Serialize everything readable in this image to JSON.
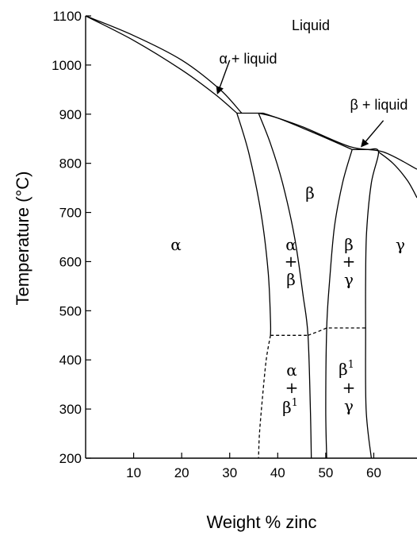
{
  "chart_data": {
    "type": "phase-diagram",
    "xlabel": "Weight % zinc",
    "ylabel": "Temperature (°C)",
    "xlim": [
      0,
      69
    ],
    "ylim": [
      200,
      1100
    ],
    "x_ticks": [
      "10",
      "20",
      "30",
      "40",
      "50",
      "60"
    ],
    "y_ticks": [
      "200",
      "300",
      "400",
      "500",
      "600",
      "700",
      "800",
      "900",
      "1000",
      "1100"
    ],
    "x_tick_values": [
      10,
      20,
      30,
      40,
      50,
      60
    ],
    "y_tick_values": [
      200,
      300,
      400,
      500,
      600,
      700,
      800,
      900,
      1000,
      1100
    ],
    "regions": {
      "liquid": "Liquid",
      "alpha": "α",
      "beta": "β",
      "gamma": "γ",
      "alpha_plus_liquid": "α + liquid",
      "beta_plus_liquid": "β + liquid",
      "ab_alpha": "α",
      "ab_plus": "+",
      "ab_beta": "β",
      "bg_beta": "β",
      "bg_plus": "+",
      "bg_gamma": "γ",
      "ab1_alpha": "α",
      "ab1_plus": "+",
      "ab1_beta": "β",
      "ab1_sup": "1",
      "b1g_beta": "β",
      "b1g_sup": "1",
      "b1g_plus": "+",
      "b1g_gamma": "γ"
    },
    "boundaries": {
      "liquidus_alpha": [
        [
          0,
          1100
        ],
        [
          10,
          1060
        ],
        [
          20,
          1010
        ],
        [
          28,
          950
        ],
        [
          32.5,
          902
        ]
      ],
      "solidus_alpha": [
        [
          0,
          1100
        ],
        [
          10,
          1050
        ],
        [
          20,
          990
        ],
        [
          27,
          940
        ],
        [
          31.5,
          902
        ]
      ],
      "peritectic_alpha_beta": [
        [
          31.5,
          902
        ],
        [
          37,
          902
        ]
      ],
      "alpha_beta_left": [
        [
          31.5,
          902
        ],
        [
          34,
          820
        ],
        [
          36.5,
          700
        ],
        [
          38,
          580
        ],
        [
          38.5,
          480
        ],
        [
          38.5,
          450
        ]
      ],
      "alpha_beta_right": [
        [
          36,
          902
        ],
        [
          38.5,
          840
        ],
        [
          41,
          760
        ],
        [
          43.5,
          650
        ],
        [
          45.3,
          530
        ],
        [
          46.3,
          450
        ],
        [
          46.8,
          300
        ],
        [
          47,
          200
        ]
      ],
      "liquidus_beta": [
        [
          37,
          902
        ],
        [
          45,
          875
        ],
        [
          55,
          834
        ],
        [
          62,
          823
        ],
        [
          69,
          788
        ]
      ],
      "solidus_beta": [
        [
          36,
          902
        ],
        [
          40,
          892
        ],
        [
          48,
          860
        ],
        [
          55.5,
          828
        ]
      ],
      "beta_gamma_left": [
        [
          55.5,
          828
        ],
        [
          53.5,
          760
        ],
        [
          51.8,
          670
        ],
        [
          50.8,
          560
        ],
        [
          50.2,
          465
        ],
        [
          50,
          300
        ],
        [
          50.2,
          200
        ]
      ],
      "beta_gamma_right": [
        [
          59,
          828
        ],
        [
          61,
          823
        ],
        [
          59.5,
          760
        ],
        [
          58.5,
          660
        ],
        [
          58.3,
          560
        ],
        [
          58.3,
          465
        ],
        [
          58.4,
          300
        ],
        [
          59.5,
          200
        ]
      ],
      "peritectic_beta_gamma": [
        [
          55.5,
          828
        ],
        [
          59,
          828
        ]
      ],
      "gamma_delta": [
        [
          61,
          823
        ],
        [
          64,
          800
        ],
        [
          67,
          765
        ],
        [
          69,
          730
        ]
      ],
      "ordering_alpha_beta": [
        [
          38.5,
          450
        ],
        [
          46.3,
          450
        ]
      ],
      "ordering_beta_step": [
        [
          46.3,
          450
        ],
        [
          48.5,
          458
        ],
        [
          50.2,
          465
        ],
        [
          58.3,
          465
        ]
      ],
      "ordering_alpha_beta1": [
        [
          38.5,
          450
        ],
        [
          37.6,
          400
        ],
        [
          36.8,
          320
        ],
        [
          36.2,
          250
        ],
        [
          36,
          200
        ]
      ]
    },
    "arrows": [
      {
        "from": [
          30,
          1010
        ],
        "to": [
          27.5,
          943
        ]
      },
      {
        "from": [
          62,
          887
        ],
        "to": [
          57.5,
          835
        ]
      }
    ]
  }
}
